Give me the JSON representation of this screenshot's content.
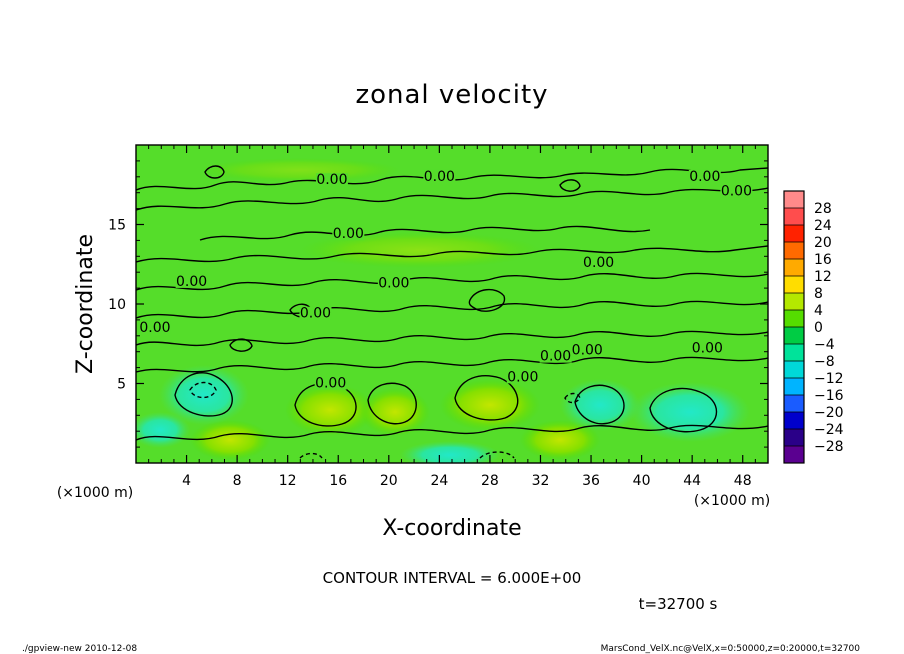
{
  "chart_data": {
    "type": "contour",
    "title": "zonal velocity",
    "xlabel": "X-coordinate",
    "ylabel": "Z-coordinate",
    "x_unit": "(×1000 m)",
    "y_unit": "(×1000 m)",
    "xlim": [
      0,
      50
    ],
    "ylim": [
      0,
      20
    ],
    "x_ticks": [
      4,
      8,
      12,
      16,
      20,
      24,
      28,
      32,
      36,
      40,
      44,
      48
    ],
    "x_tick_labels": [
      "4",
      "8",
      "12",
      "16",
      "20",
      "24",
      "28",
      "32",
      "36",
      "40",
      "44",
      "48"
    ],
    "y_ticks": [
      5,
      10,
      15
    ],
    "y_tick_labels": [
      "5",
      "10",
      "15"
    ],
    "contour_interval_text": "CONTOUR INTERVAL = 6.000E+00",
    "time_label": "t=32700 s",
    "colorbar": {
      "labels": [
        "28",
        "24",
        "20",
        "16",
        "12",
        "8",
        "4",
        "0",
        "−4",
        "−8",
        "−12",
        "−16",
        "−20",
        "−24",
        "−28"
      ],
      "values": [
        28,
        24,
        20,
        16,
        12,
        8,
        4,
        0,
        -4,
        -8,
        -12,
        -16,
        -20,
        -24,
        -28
      ],
      "colors": [
        "#ff8a8a",
        "#ff4d4d",
        "#ff2200",
        "#ff6a00",
        "#ffaa00",
        "#ffdd00",
        "#b4e800",
        "#55dd00",
        "#00cc44",
        "#00e39a",
        "#00d8d8",
        "#00b4ff",
        "#1a5cff",
        "#0000cc",
        "#2a0088",
        "#5a0090"
      ]
    },
    "contour_labels": [
      {
        "text": "0.00",
        "x": 15.5,
        "y": 17.6
      },
      {
        "text": "0.00",
        "x": 24.0,
        "y": 17.8
      },
      {
        "text": "0.00",
        "x": 45.0,
        "y": 17.8
      },
      {
        "text": "0.00",
        "x": 47.5,
        "y": 16.9
      },
      {
        "text": "0.00",
        "x": 16.8,
        "y": 14.2
      },
      {
        "text": "0.00",
        "x": 20.4,
        "y": 11.1
      },
      {
        "text": "0.00",
        "x": 4.4,
        "y": 11.2
      },
      {
        "text": "0.00",
        "x": 36.6,
        "y": 12.4
      },
      {
        "text": "0.00",
        "x": 14.2,
        "y": 9.2
      },
      {
        "text": "0.00",
        "x": 1.5,
        "y": 8.3
      },
      {
        "text": "0.00",
        "x": 33.2,
        "y": 6.5
      },
      {
        "text": "0.00",
        "x": 35.7,
        "y": 6.9
      },
      {
        "text": "0.00",
        "x": 45.2,
        "y": 7.0
      },
      {
        "text": "0.00",
        "x": 30.6,
        "y": 5.2
      },
      {
        "text": "0.00",
        "x": 15.4,
        "y": 4.8
      }
    ],
    "highs": [
      {
        "x": 28.0,
        "y": 3.6,
        "sign": "positive"
      },
      {
        "x": 15.2,
        "y": 3.4,
        "sign": "positive"
      },
      {
        "x": 20.5,
        "y": 3.2,
        "sign": "positive"
      }
    ],
    "lows": [
      {
        "x": 5.3,
        "y": 4.3,
        "sign": "negative"
      },
      {
        "x": 36.8,
        "y": 3.6,
        "sign": "negative"
      },
      {
        "x": 44.0,
        "y": 3.4,
        "sign": "negative"
      }
    ]
  },
  "footer": {
    "left": "./gpview-new  2010-12-08",
    "right": "MarsCond_VelX.nc@VelX,x=0:50000,z=0:20000,t=32700"
  }
}
